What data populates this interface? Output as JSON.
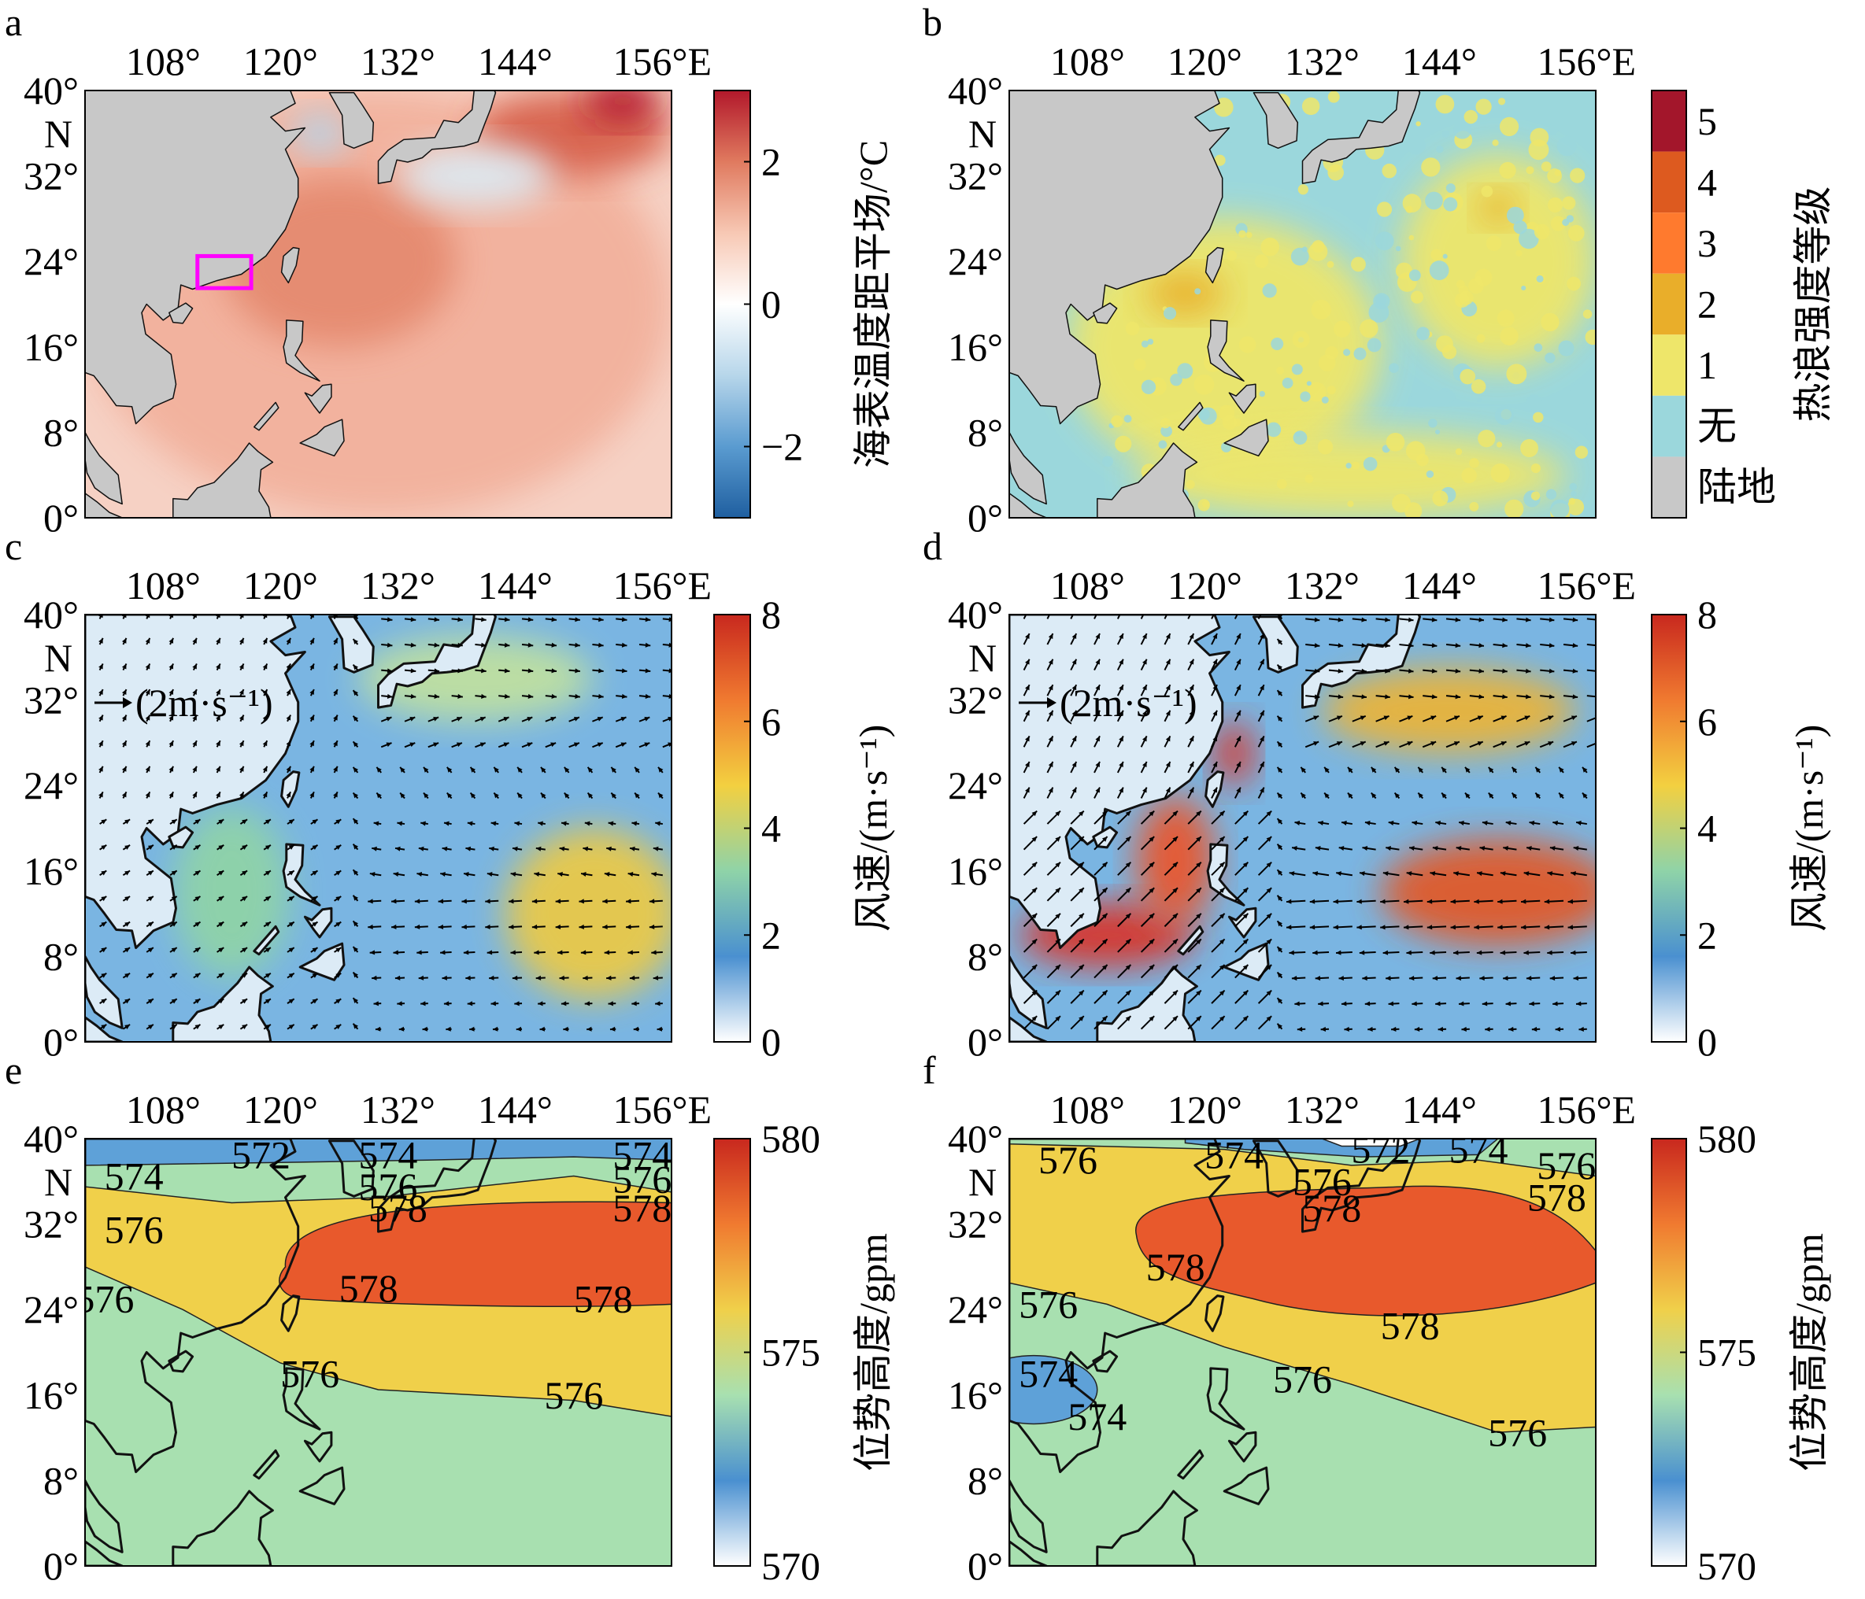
{
  "figure": {
    "x_ticks": [
      "108°",
      "120°",
      "132°",
      "144°",
      "156°E"
    ],
    "y_ticks": [
      "40°",
      "N",
      "32°",
      "24°",
      "16°",
      "8°",
      "0°"
    ],
    "extent": {
      "lon_min": 100,
      "lon_max": 160,
      "lat_min": 0,
      "lat_max": 40
    }
  },
  "chart_data": [
    {
      "panel": "a",
      "type": "heatmap",
      "xlabel": "",
      "ylabel": "",
      "colorbar": {
        "label": "海表温度距平场/°C",
        "ticks": [
          "2",
          "0",
          "−2"
        ],
        "tick_values": [
          2,
          0,
          -2
        ],
        "range": [
          -3,
          3
        ],
        "colors": [
          "#1f5fa0",
          "#5a9bd0",
          "#b7d6ea",
          "#ffffff",
          "#f7c8b4",
          "#e07a5f",
          "#b2182b"
        ]
      },
      "highlight_box": {
        "lon": [
          111.5,
          117
        ],
        "lat": [
          21.5,
          24.5
        ],
        "color": "#ff00ff"
      },
      "fields": [
        {
          "name": "field",
          "shape": "blob",
          "lon": 130,
          "lat": 20,
          "rx": 30,
          "ry": 20,
          "color": "#f2b19c"
        },
        {
          "name": "field",
          "shape": "blob",
          "lon": 126,
          "lat": 24,
          "rx": 12,
          "ry": 8,
          "color": "#e58a70"
        },
        {
          "name": "field",
          "shape": "blob",
          "lon": 150,
          "lat": 36,
          "rx": 10,
          "ry": 4,
          "color": "#d7604b"
        },
        {
          "name": "field",
          "shape": "blob",
          "lon": 140,
          "lat": 32,
          "rx": 8,
          "ry": 3,
          "color": "#dde8f0"
        },
        {
          "name": "field",
          "shape": "blob",
          "lon": 124,
          "lat": 36,
          "rx": 3,
          "ry": 2,
          "color": "#b7d6ea"
        },
        {
          "name": "field",
          "shape": "blob",
          "lon": 155,
          "lat": 39,
          "rx": 4,
          "ry": 2,
          "color": "#b2182b"
        }
      ],
      "ocean_color": "#f6d1c4"
    },
    {
      "panel": "b",
      "type": "heatmap",
      "xlabel": "",
      "ylabel": "",
      "colorbar": {
        "label": "热浪强度等级",
        "ticks": [
          "5",
          "4",
          "3",
          "2",
          "1",
          "无",
          "陆地"
        ],
        "colors": [
          "#a3162b",
          "#dd5a1f",
          "#ff7a2e",
          "#e9ae2a",
          "#eee66a",
          "#9bd7dc",
          "#c8c8c8"
        ]
      },
      "fields": [
        {
          "name": "level-1",
          "shape": "blob",
          "lon": 122,
          "lat": 16,
          "rx": 16,
          "ry": 12,
          "color": "#eee66a"
        },
        {
          "name": "level-1",
          "shape": "blob",
          "lon": 150,
          "lat": 24,
          "rx": 10,
          "ry": 10,
          "color": "#eee66a"
        },
        {
          "name": "level-1",
          "shape": "blob",
          "lon": 135,
          "lat": 4,
          "rx": 22,
          "ry": 4,
          "color": "#eee66a"
        },
        {
          "name": "level-2",
          "shape": "blob",
          "lon": 118,
          "lat": 21,
          "rx": 4,
          "ry": 2,
          "color": "#e9ae2a"
        },
        {
          "name": "level-2",
          "shape": "blob",
          "lon": 150,
          "lat": 29,
          "rx": 2,
          "ry": 1.5,
          "color": "#e9ae2a"
        }
      ],
      "ocean_color": "#9bd7dc"
    },
    {
      "panel": "c",
      "type": "heatmap",
      "xlabel": "",
      "ylabel": "",
      "colorbar": {
        "label": "风速/(m·s⁻¹)",
        "ticks": [
          "8",
          "6",
          "4",
          "2",
          "0"
        ],
        "tick_values": [
          8,
          6,
          4,
          2,
          0
        ],
        "range": [
          0,
          8
        ],
        "colors": [
          "#ffffff",
          "#4a90d0",
          "#8fd3a8",
          "#f3d040",
          "#f07a30",
          "#c8281e"
        ]
      },
      "reference_vector": "(2m·s⁻¹)",
      "fields": [
        {
          "name": "speed",
          "shape": "blob",
          "lon": 152,
          "lat": 12,
          "rx": 9,
          "ry": 8,
          "color": "#e9c94a"
        },
        {
          "name": "speed",
          "shape": "blob",
          "lon": 140,
          "lat": 34,
          "rx": 12,
          "ry": 4,
          "color": "#bfe0a0"
        },
        {
          "name": "speed",
          "shape": "blob",
          "lon": 115,
          "lat": 14,
          "rx": 6,
          "ry": 8,
          "color": "#8fd3a8"
        }
      ],
      "ocean_color": "#7ab5e2",
      "wind": {
        "pattern": "easterly-weak"
      }
    },
    {
      "panel": "d",
      "type": "heatmap",
      "xlabel": "",
      "ylabel": "",
      "colorbar": {
        "label": "风速/(m·s⁻¹)",
        "ticks": [
          "8",
          "6",
          "4",
          "2",
          "0"
        ],
        "tick_values": [
          8,
          6,
          4,
          2,
          0
        ],
        "range": [
          0,
          8
        ],
        "colors": [
          "#ffffff",
          "#4a90d0",
          "#8fd3a8",
          "#f3d040",
          "#f07a30",
          "#c8281e"
        ]
      },
      "reference_vector": "(2m·s⁻¹)",
      "fields": [
        {
          "name": "speed",
          "shape": "blob",
          "lon": 110,
          "lat": 10,
          "rx": 9,
          "ry": 3,
          "color": "#d8342a"
        },
        {
          "name": "speed",
          "shape": "blob",
          "lon": 117,
          "lat": 17,
          "rx": 4,
          "ry": 6,
          "color": "#e8572e"
        },
        {
          "name": "speed",
          "shape": "blob",
          "lon": 150,
          "lat": 14,
          "rx": 12,
          "ry": 5,
          "color": "#e05a2c"
        },
        {
          "name": "speed",
          "shape": "blob",
          "lon": 145,
          "lat": 31,
          "rx": 13,
          "ry": 4,
          "color": "#e9b43a"
        },
        {
          "name": "speed",
          "shape": "blob",
          "lon": 123,
          "lat": 27,
          "rx": 2,
          "ry": 3,
          "color": "#d8342a"
        }
      ],
      "ocean_color": "#7ab5e2",
      "wind": {
        "pattern": "monsoon-strong"
      }
    },
    {
      "panel": "e",
      "type": "heatmap",
      "xlabel": "",
      "ylabel": "",
      "colorbar": {
        "label": "位势高度/gpm",
        "ticks": [
          "580",
          "575",
          "570"
        ],
        "tick_values": [
          580,
          575,
          570
        ],
        "range": [
          570,
          580
        ],
        "colors": [
          "#ffffff",
          "#4a90d0",
          "#a8e0b0",
          "#f0d04a",
          "#f07a30",
          "#c8281e"
        ]
      },
      "contour_labels": [
        {
          "text": "574",
          "lon": 105,
          "lat": 36.5
        },
        {
          "text": "572",
          "lon": 118,
          "lat": 38.5
        },
        {
          "text": "574",
          "lon": 131,
          "lat": 38.5
        },
        {
          "text": "574",
          "lon": 157,
          "lat": 38.5
        },
        {
          "text": "576",
          "lon": 131,
          "lat": 35.5
        },
        {
          "text": "576",
          "lon": 157,
          "lat": 36.2
        },
        {
          "text": "578",
          "lon": 132,
          "lat": 33.5
        },
        {
          "text": "578",
          "lon": 157,
          "lat": 33.5
        },
        {
          "text": "576",
          "lon": 105,
          "lat": 31.5
        },
        {
          "text": "576",
          "lon": 102,
          "lat": 25
        },
        {
          "text": "578",
          "lon": 129,
          "lat": 26
        },
        {
          "text": "578",
          "lon": 153,
          "lat": 25
        },
        {
          "text": "576",
          "lon": 123,
          "lat": 18
        },
        {
          "text": "576",
          "lon": 150,
          "lat": 16
        }
      ]
    },
    {
      "panel": "f",
      "type": "heatmap",
      "xlabel": "",
      "ylabel": "",
      "colorbar": {
        "label": "位势高度/gpm",
        "ticks": [
          "580",
          "575",
          "570"
        ],
        "tick_values": [
          580,
          575,
          570
        ],
        "range": [
          570,
          580
        ],
        "colors": [
          "#ffffff",
          "#4a90d0",
          "#a8e0b0",
          "#f0d04a",
          "#f07a30",
          "#c8281e"
        ]
      },
      "contour_labels": [
        {
          "text": "576",
          "lon": 106,
          "lat": 38
        },
        {
          "text": "574",
          "lon": 123,
          "lat": 38.5
        },
        {
          "text": "572",
          "lon": 138,
          "lat": 39
        },
        {
          "text": "574",
          "lon": 148,
          "lat": 39
        },
        {
          "text": "576",
          "lon": 157,
          "lat": 37.5
        },
        {
          "text": "576",
          "lon": 132,
          "lat": 36
        },
        {
          "text": "578",
          "lon": 133,
          "lat": 33.5
        },
        {
          "text": "578",
          "lon": 156,
          "lat": 34.5
        },
        {
          "text": "578",
          "lon": 117,
          "lat": 28
        },
        {
          "text": "576",
          "lon": 104,
          "lat": 24.5
        },
        {
          "text": "578",
          "lon": 141,
          "lat": 22.5
        },
        {
          "text": "574",
          "lon": 104,
          "lat": 18
        },
        {
          "text": "574",
          "lon": 109,
          "lat": 14
        },
        {
          "text": "576",
          "lon": 130,
          "lat": 17.5
        },
        {
          "text": "576",
          "lon": 152,
          "lat": 12.5
        }
      ]
    }
  ]
}
